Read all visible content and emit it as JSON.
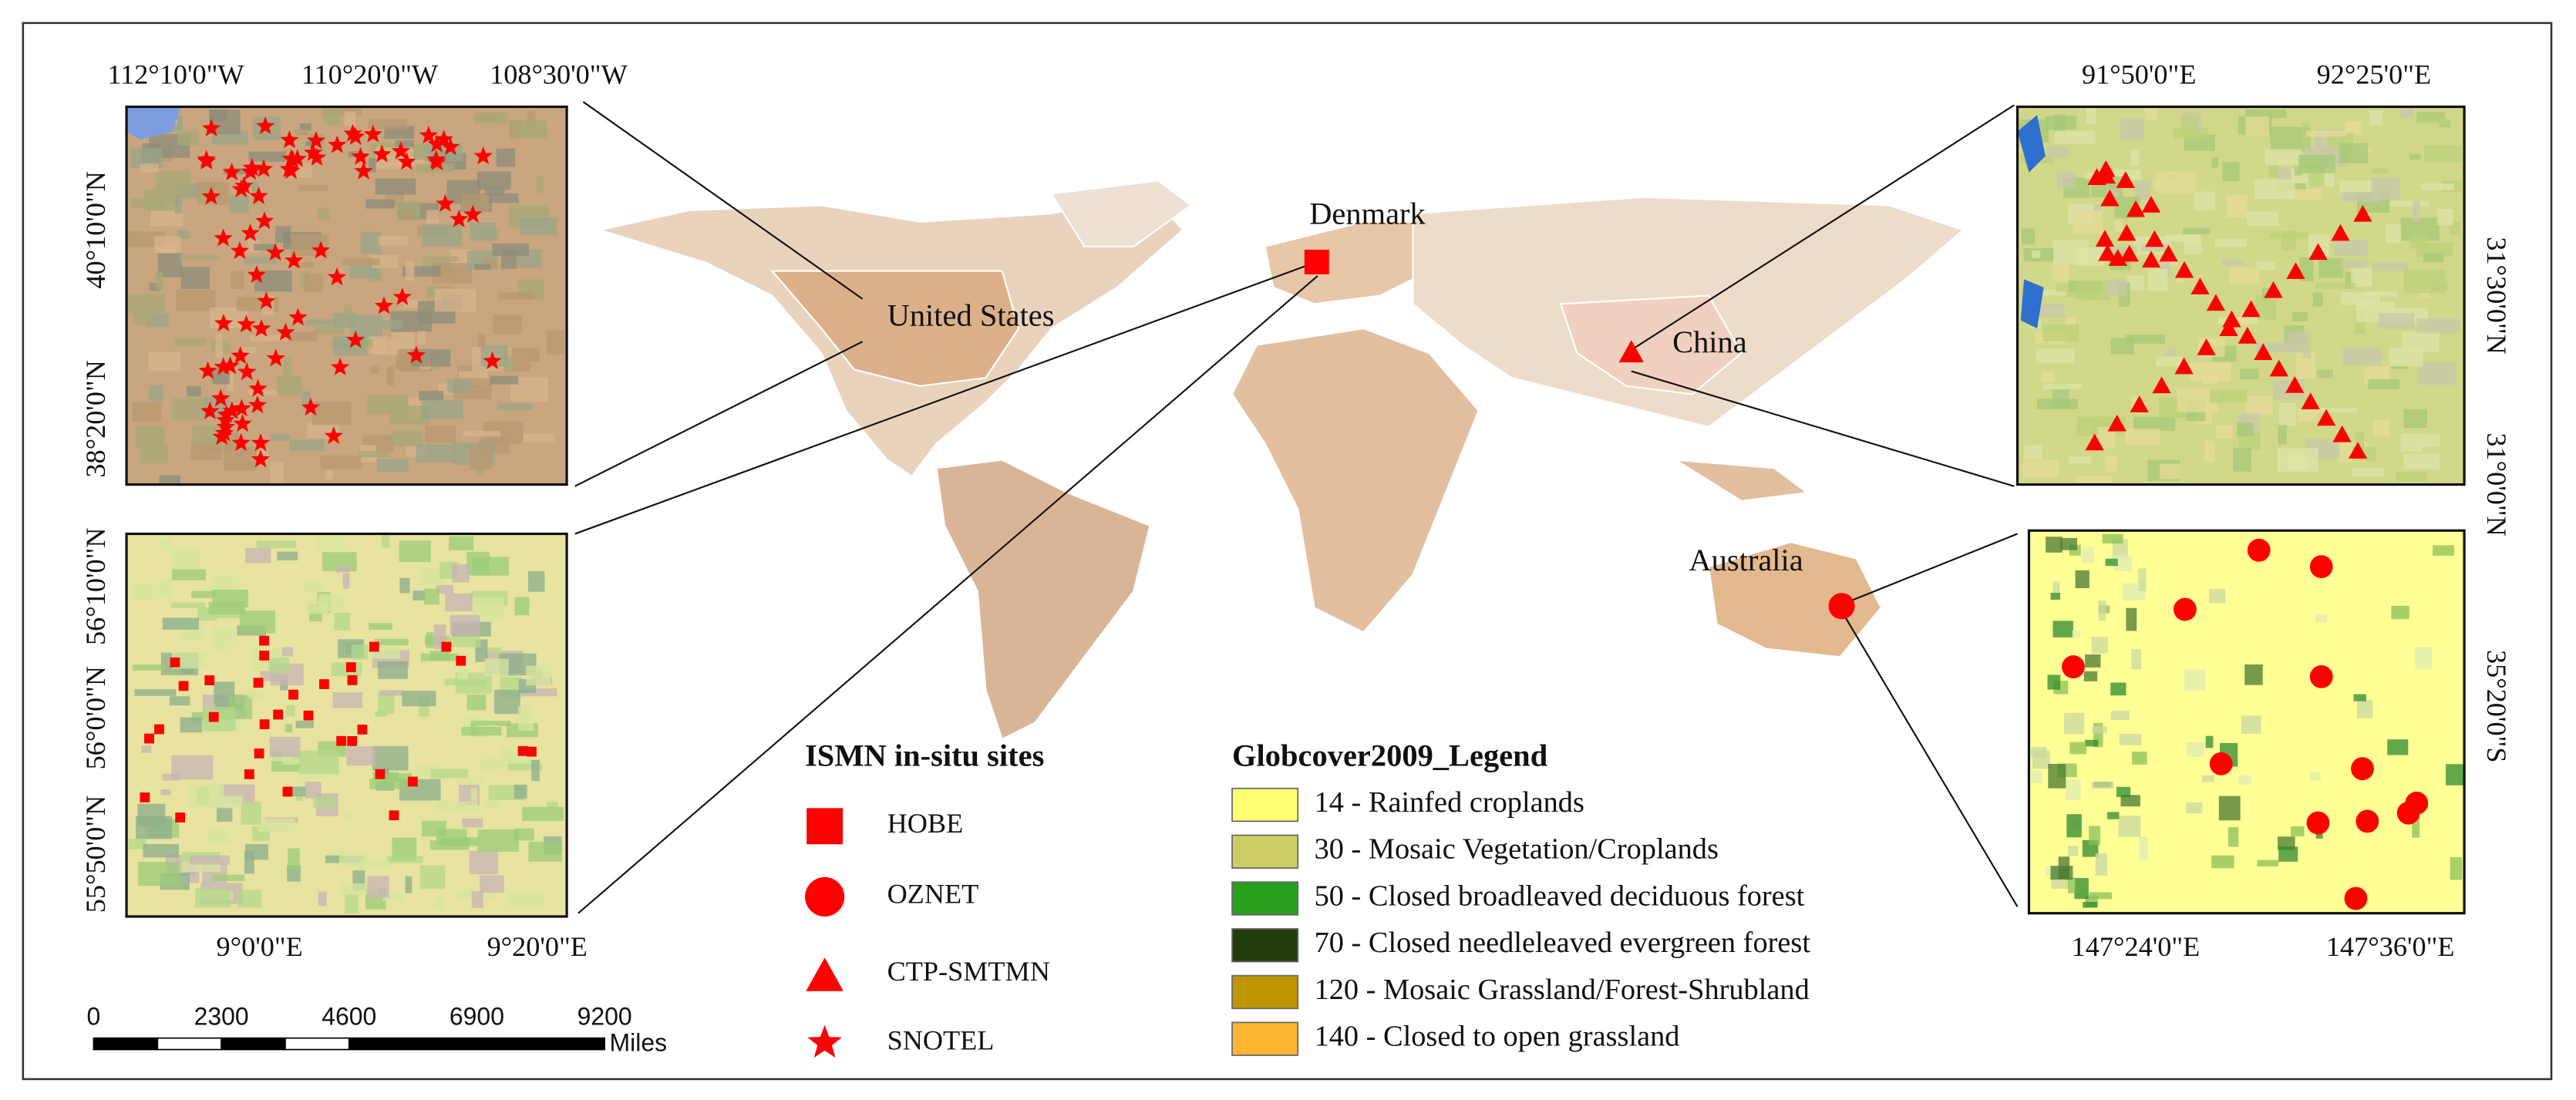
{
  "panels": {
    "us": {
      "top_labels": [
        "112°10'0\"W",
        "110°20'0\"W",
        "108°30'0\"W"
      ],
      "left_labels": [
        "40°10'0\"N",
        "38°20'0\"N"
      ]
    },
    "denmark": {
      "left_labels": [
        "56°10'0\"N",
        "56°0'0\"N",
        "55°50'0\"N"
      ],
      "bottom_labels": [
        "9°0'0\"E",
        "9°20'0\"E"
      ]
    },
    "china": {
      "top_labels": [
        "91°50'0\"E",
        "92°25'0\"E"
      ],
      "right_labels": [
        "31°30'0\"N",
        "31°0'0\"N"
      ]
    },
    "australia": {
      "right_labels": [
        "35°20'0\"S"
      ],
      "bottom_labels": [
        "147°24'0\"E",
        "147°36'0\"E"
      ]
    }
  },
  "map_labels": [
    "United States",
    "Denmark",
    "China",
    "Australia"
  ],
  "site_legend": {
    "title": "ISMN in-situ sites",
    "items": [
      "HOBE",
      "OZNET",
      "CTP-SMTMN",
      "SNOTEL"
    ]
  },
  "globcover_legend": {
    "title": "Globcover2009_Legend",
    "items": [
      {
        "label": "14 - Rainfed croplands",
        "color": "#ffff73"
      },
      {
        "label": "30 - Mosaic Vegetation/Croplands",
        "color": "#cdcd66"
      },
      {
        "label": "50 - Closed broadleaved deciduous forest",
        "color": "#28a01e"
      },
      {
        "label": "70 - Closed needleleaved evergreen forest",
        "color": "#233d0a"
      },
      {
        "label": "120 - Mosaic Grassland/Forest-Shrubland",
        "color": "#bf9600"
      },
      {
        "label": "140 - Closed to open grassland",
        "color": "#ffb432"
      }
    ]
  },
  "scale_bar": {
    "ticks": [
      0,
      2300,
      4600,
      6900,
      9200
    ],
    "unit": "Miles"
  }
}
